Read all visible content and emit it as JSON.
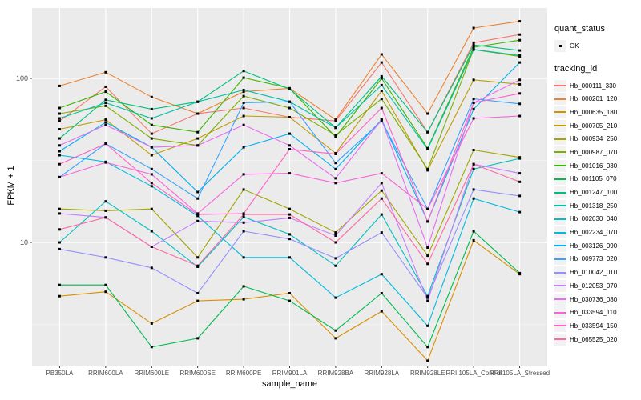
{
  "figure": {
    "background": "#FFFFFF",
    "panel_background": "#EBEBEB",
    "grid_color": "#FFFFFF",
    "tick_text_color": "#4D4D4D",
    "marker_color": "#000000"
  },
  "axes": {
    "x_title": "sample_name",
    "y_title": "FPKM + 1"
  },
  "legend": {
    "quant_status": {
      "title": "quant_status",
      "items": [
        {
          "label": "OK",
          "symbol": "point"
        }
      ]
    },
    "tracking_id": {
      "title": "tracking_id"
    }
  },
  "chart_data": {
    "type": "line",
    "title": "",
    "xlabel": "sample_name",
    "ylabel": "FPKM + 1",
    "y_scale": "log10",
    "y_ticks": [
      10,
      100
    ],
    "y_minor_ticks": [
      3.162,
      31.62
    ],
    "ylim": [
      1.77,
      267
    ],
    "grid": true,
    "legend_position": "right",
    "marker": {
      "shape": "square",
      "color": "#000000",
      "size": 3
    },
    "categories": [
      "PB350LA",
      "RRIM600LA",
      "RRIM600LE",
      "RRIM600SE",
      "RRIM600PE",
      "RRIM901LA",
      "RRIM928BA",
      "RRIM928LA",
      "RRIM928LE",
      "RRII105LA_Control",
      "RRII105LA_Stressed"
    ],
    "series": [
      {
        "name": "Hb_000111_330",
        "color": "#F8766D",
        "values": [
          55,
          89,
          46,
          61,
          66,
          58,
          55,
          125,
          47,
          165,
          185
        ]
      },
      {
        "name": "Hb_000201_120",
        "color": "#EA8331",
        "values": [
          90,
          109,
          77,
          61,
          83,
          87,
          56,
          140,
          61,
          203,
          223
        ]
      },
      {
        "name": "Hb_000635_180",
        "color": "#D89000",
        "values": [
          4.7,
          5,
          3.2,
          4.4,
          4.5,
          4.9,
          2.6,
          3.8,
          1.9,
          10.3,
          6.4
        ]
      },
      {
        "name": "Hb_000705_210",
        "color": "#C09B00",
        "values": [
          49,
          56,
          34,
          43,
          59,
          58,
          35,
          84,
          27.5,
          98,
          92
        ]
      },
      {
        "name": "Hb_000934_250",
        "color": "#A3A500",
        "values": [
          16,
          15.6,
          16,
          8.1,
          21,
          16,
          11.5,
          20.7,
          8.3,
          36.6,
          33
        ]
      },
      {
        "name": "Hb_000987_070",
        "color": "#7CAE00",
        "values": [
          61,
          68,
          43,
          39,
          78,
          66,
          45,
          75,
          28,
          150,
          136
        ]
      },
      {
        "name": "Hb_001016_030",
        "color": "#39B600",
        "values": [
          66,
          83,
          52,
          47,
          101,
          87,
          44,
          100,
          37.5,
          155,
          171
        ]
      },
      {
        "name": "Hb_001105_070",
        "color": "#00BB4E",
        "values": [
          5.5,
          5.5,
          2.3,
          2.6,
          5.4,
          4.4,
          2.9,
          4.9,
          2.3,
          11.7,
          6.5
        ]
      },
      {
        "name": "Hb_001247_100",
        "color": "#00BF7D",
        "values": [
          43,
          74,
          65,
          72,
          111,
          86,
          50,
          103,
          47,
          160,
          148
        ]
      },
      {
        "name": "Hb_001318_250",
        "color": "#00C1A3",
        "values": [
          57,
          71,
          57,
          72,
          85,
          72,
          50,
          91,
          37,
          150,
          138
        ]
      },
      {
        "name": "Hb_002030_040",
        "color": "#00BFC4",
        "values": [
          10,
          17.8,
          11.7,
          7.1,
          14.3,
          11.2,
          7.2,
          14.8,
          4.7,
          28,
          32.5
        ]
      },
      {
        "name": "Hb_002234_070",
        "color": "#00BAE0",
        "values": [
          34,
          31,
          22,
          14.5,
          8.1,
          8.1,
          4.6,
          6.4,
          3.1,
          18.5,
          15.3
        ]
      },
      {
        "name": "Hb_003126_090",
        "color": "#00B0F6",
        "values": [
          36,
          54,
          38,
          20.3,
          38,
          46,
          28,
          56,
          13.4,
          65,
          125
        ]
      },
      {
        "name": "Hb_009773_020",
        "color": "#35A2FF",
        "values": [
          25,
          40,
          28,
          18.5,
          71,
          72,
          30.5,
          55,
          16,
          75,
          70
        ]
      },
      {
        "name": "Hb_010042_010",
        "color": "#9590FF",
        "values": [
          9.1,
          8.1,
          7,
          4.9,
          11.7,
          10.5,
          8,
          11.5,
          4.6,
          21,
          19.2
        ]
      },
      {
        "name": "Hb_012053_070",
        "color": "#C77CFF",
        "values": [
          15,
          14.2,
          9.4,
          13.5,
          13.2,
          14.1,
          11,
          23,
          4.4,
          30,
          26.4
        ]
      },
      {
        "name": "Hb_030736_080",
        "color": "#E76BF3",
        "values": [
          39,
          52,
          38,
          39,
          52,
          39,
          24.6,
          56,
          9.3,
          71,
          98
        ]
      },
      {
        "name": "Hb_033594_110",
        "color": "#FA62DB",
        "values": [
          25,
          30.7,
          26,
          15,
          26,
          26.4,
          23,
          26.4,
          16,
          57,
          59
        ]
      },
      {
        "name": "Hb_033594_150",
        "color": "#FF61C9",
        "values": [
          30,
          40,
          23,
          14.8,
          15,
          37,
          34.6,
          66,
          13.4,
          71,
          81
        ]
      },
      {
        "name": "Hb_065525_020",
        "color": "#FF67A4",
        "values": [
          12,
          14.2,
          9.4,
          7.2,
          14.8,
          14.8,
          10,
          18.5,
          7.4,
          30,
          23.4
        ]
      }
    ]
  }
}
